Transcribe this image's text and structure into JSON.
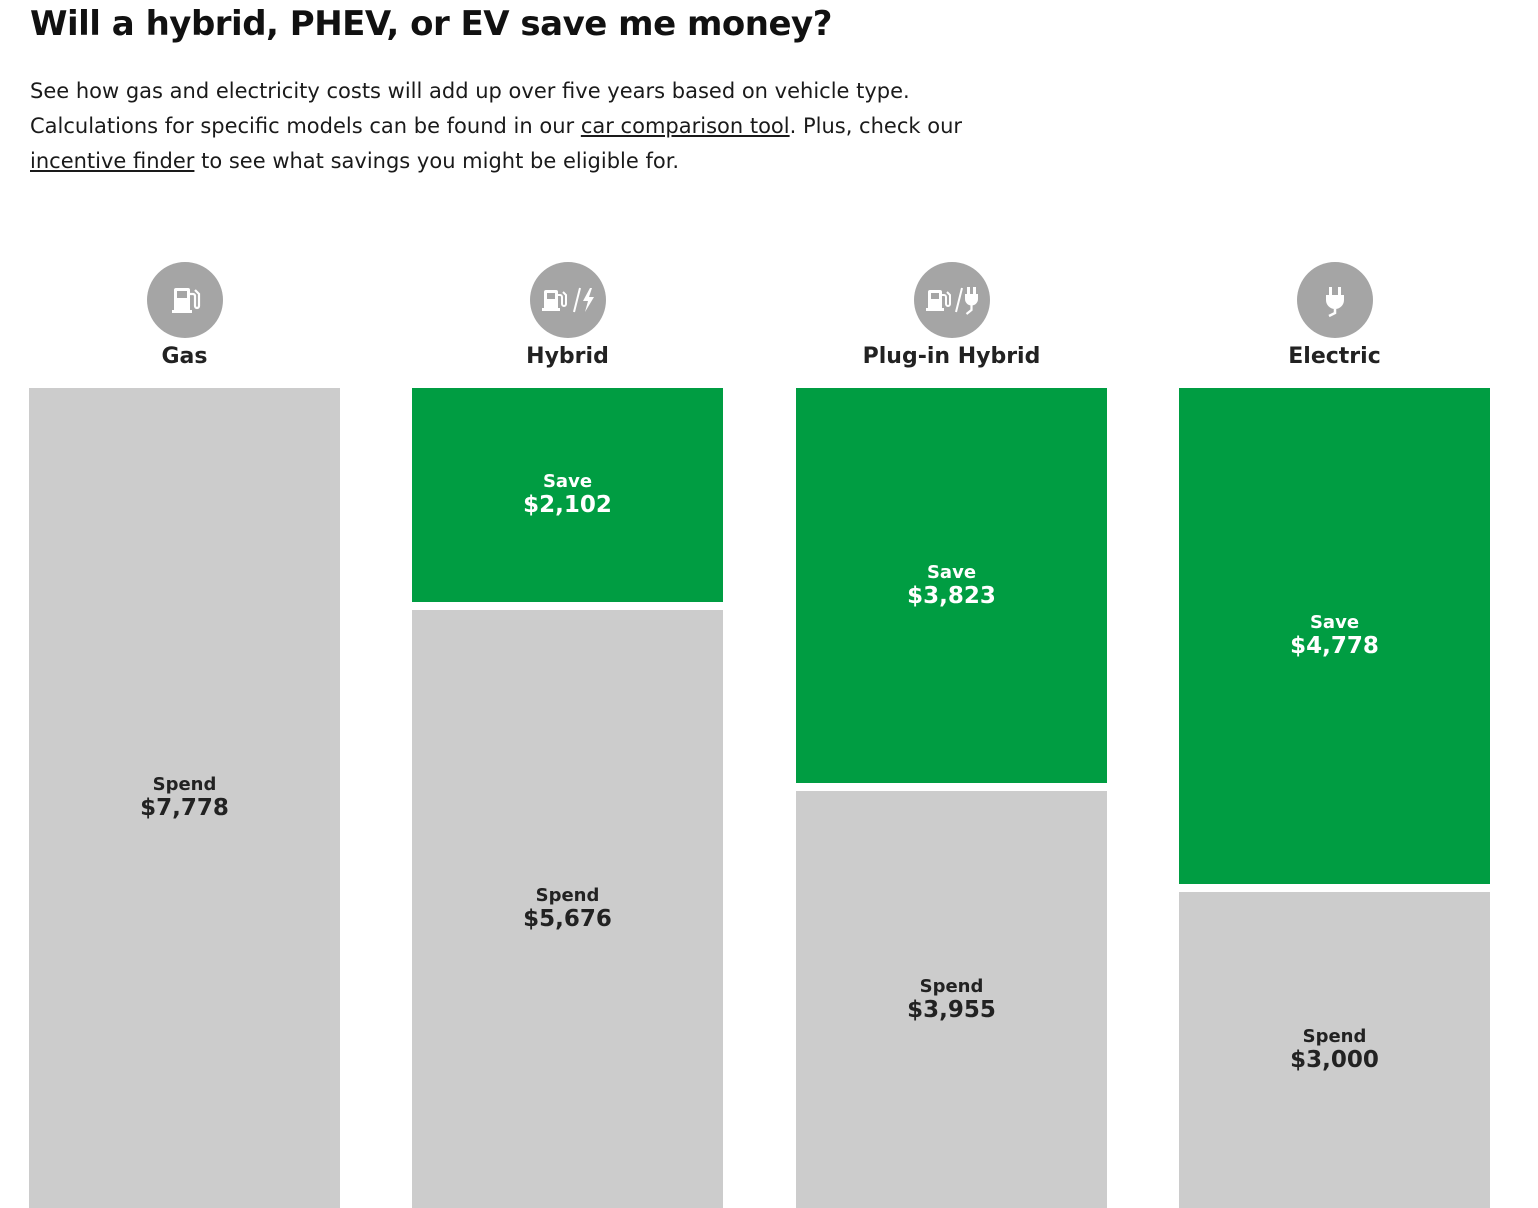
{
  "header": {
    "title": "Will a hybrid, PHEV, or EV save me money?",
    "intro_part1": "See how gas and electricity costs will add up over five years based on vehicle type. Calculations for specific models can be found in our ",
    "link_car_comparison": "car comparison tool",
    "intro_part2": ". Plus, check our ",
    "link_incentive_finder": "incentive finder",
    "intro_part3": " to see what savings you might be eligible for."
  },
  "colors": {
    "save": "#009d42",
    "spend": "#cccccc",
    "icon_bg": "#a5a5a5"
  },
  "chart_data": {
    "type": "bar",
    "stacked": true,
    "categories": [
      "Gas",
      "Hybrid",
      "Plug-in Hybrid",
      "Electric"
    ],
    "icons": [
      "gas-pump-icon",
      "gas-pump-lightning-icon",
      "gas-pump-plug-icon",
      "plug-icon"
    ],
    "labels": {
      "save": "Save",
      "spend": "Spend"
    },
    "series": [
      {
        "name": "Save",
        "values": [
          0,
          2102,
          3823,
          4778
        ],
        "display": [
          "",
          "$2,102",
          "$3,823",
          "$4,778"
        ]
      },
      {
        "name": "Spend",
        "values": [
          7778,
          5676,
          3955,
          3000
        ],
        "display": [
          "$7,778",
          "$5,676",
          "$3,955",
          "$3,000"
        ]
      }
    ],
    "total": 7778
  }
}
